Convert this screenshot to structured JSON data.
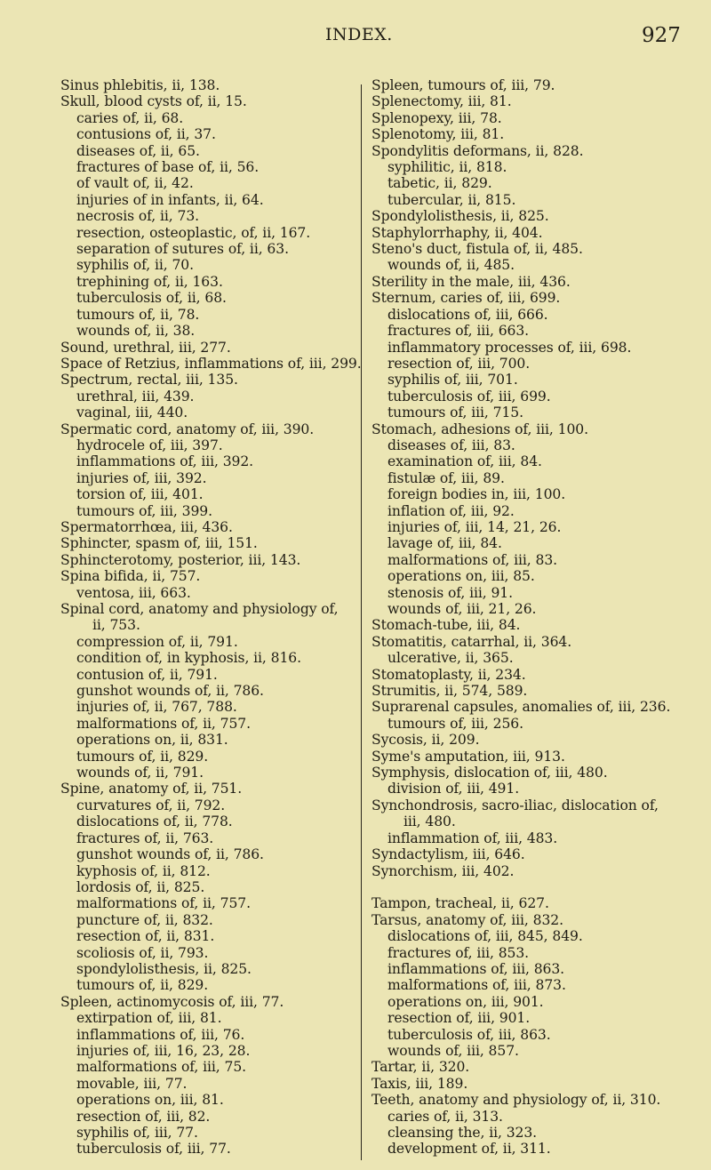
{
  "header": {
    "title": "INDEX.",
    "page_number": "927"
  },
  "left_column": [
    {
      "entries": [
        {
          "t": "Sinus phlebitis, ii, 138.",
          "k": "main"
        },
        {
          "t": "Skull, blood cysts of, ii, 15.",
          "k": "main"
        },
        {
          "t": "caries of, ii, 68.",
          "k": "sub"
        },
        {
          "t": "contusions of, ii, 37.",
          "k": "sub"
        },
        {
          "t": "diseases of, ii, 65.",
          "k": "sub"
        },
        {
          "t": "fractures of base of, ii, 56.",
          "k": "sub"
        },
        {
          "t": "of vault of, ii, 42.",
          "k": "sub"
        },
        {
          "t": "injuries of in infants, ii, 64.",
          "k": "sub"
        },
        {
          "t": "necrosis of, ii, 73.",
          "k": "sub"
        },
        {
          "t": "resection, osteoplastic, of, ii, 167.",
          "k": "sub"
        },
        {
          "t": "separation of sutures of, ii, 63.",
          "k": "sub"
        },
        {
          "t": "syphilis of, ii, 70.",
          "k": "sub"
        },
        {
          "t": "trephining of, ii, 163.",
          "k": "sub"
        },
        {
          "t": "tuberculosis of, ii, 68.",
          "k": "sub"
        },
        {
          "t": "tumours of, ii, 78.",
          "k": "sub"
        },
        {
          "t": "wounds of, ii, 38.",
          "k": "sub"
        },
        {
          "t": "Sound, urethral, iii, 277.",
          "k": "main"
        },
        {
          "t": "Space of Retzius, inflammations of, iii, 299.",
          "k": "main"
        },
        {
          "t": "Spectrum, rectal, iii, 135.",
          "k": "main"
        },
        {
          "t": "urethral, iii, 439.",
          "k": "sub"
        },
        {
          "t": "vaginal, iii, 440.",
          "k": "sub"
        },
        {
          "t": "Spermatic cord, anatomy of, iii, 390.",
          "k": "main"
        },
        {
          "t": "hydrocele of, iii, 397.",
          "k": "sub"
        },
        {
          "t": "inflammations of, iii, 392.",
          "k": "sub"
        },
        {
          "t": "injuries of, iii, 392.",
          "k": "sub"
        },
        {
          "t": "torsion of, iii, 401.",
          "k": "sub"
        },
        {
          "t": "tumours of, iii, 399.",
          "k": "sub"
        },
        {
          "t": "Spermatorrhœa, iii, 436.",
          "k": "main"
        },
        {
          "t": "Sphincter, spasm of, iii, 151.",
          "k": "main"
        },
        {
          "t": "Sphincterotomy, posterior, iii, 143.",
          "k": "main"
        },
        {
          "t": "Spina bifida, ii, 757.",
          "k": "main"
        },
        {
          "t": "ventosa, iii, 663.",
          "k": "sub"
        },
        {
          "t": "Spinal cord, anatomy and physiology of,",
          "k": "main"
        },
        {
          "t": "ii, 753.",
          "k": "cont"
        },
        {
          "t": "compression of, ii, 791.",
          "k": "sub"
        },
        {
          "t": "condition of, in kyphosis, ii, 816.",
          "k": "sub"
        },
        {
          "t": "contusion of, ii, 791.",
          "k": "sub"
        },
        {
          "t": "gunshot wounds of, ii, 786.",
          "k": "sub"
        },
        {
          "t": "injuries of, ii, 767, 788.",
          "k": "sub"
        },
        {
          "t": "malformations of, ii, 757.",
          "k": "sub"
        },
        {
          "t": "operations on, ii, 831.",
          "k": "sub"
        },
        {
          "t": "tumours of, ii, 829.",
          "k": "sub"
        },
        {
          "t": "wounds of, ii, 791.",
          "k": "sub"
        },
        {
          "t": "Spine, anatomy of, ii, 751.",
          "k": "main"
        },
        {
          "t": "curvatures of, ii, 792.",
          "k": "sub"
        },
        {
          "t": "dislocations of, ii, 778.",
          "k": "sub"
        },
        {
          "t": "fractures of, ii, 763.",
          "k": "sub"
        },
        {
          "t": "gunshot wounds of, ii, 786.",
          "k": "sub"
        },
        {
          "t": "kyphosis of, ii, 812.",
          "k": "sub"
        },
        {
          "t": "lordosis of, ii, 825.",
          "k": "sub"
        },
        {
          "t": "malformations of, ii, 757.",
          "k": "sub"
        },
        {
          "t": "puncture of, ii, 832.",
          "k": "sub"
        },
        {
          "t": "resection of, ii, 831.",
          "k": "sub"
        },
        {
          "t": "scoliosis of, ii, 793.",
          "k": "sub"
        },
        {
          "t": "spondylolisthesis, ii, 825.",
          "k": "sub"
        },
        {
          "t": "tumours of, ii, 829.",
          "k": "sub"
        },
        {
          "t": "Spleen, actinomycosis of, iii, 77.",
          "k": "main"
        },
        {
          "t": "extirpation of, iii, 81.",
          "k": "sub"
        },
        {
          "t": "inflammations of, iii, 76.",
          "k": "sub"
        },
        {
          "t": "injuries of, iii, 16, 23, 28.",
          "k": "sub"
        },
        {
          "t": "malformations of, iii, 75.",
          "k": "sub"
        },
        {
          "t": "movable, iii, 77.",
          "k": "sub"
        },
        {
          "t": "operations on, iii, 81.",
          "k": "sub"
        },
        {
          "t": "resection of, iii, 82.",
          "k": "sub"
        },
        {
          "t": "syphilis of, iii, 77.",
          "k": "sub"
        },
        {
          "t": "tuberculosis of, iii, 77.",
          "k": "sub"
        }
      ]
    }
  ],
  "right_column": [
    {
      "entries": [
        {
          "t": "Spleen, tumours of, iii, 79.",
          "k": "main"
        },
        {
          "t": "Splenectomy, iii, 81.",
          "k": "main"
        },
        {
          "t": "Splenopexy, iii, 78.",
          "k": "main"
        },
        {
          "t": "Splenotomy, iii, 81.",
          "k": "main"
        },
        {
          "t": "Spondylitis deformans, ii, 828.",
          "k": "main"
        },
        {
          "t": "syphilitic, ii, 818.",
          "k": "sub"
        },
        {
          "t": "tabetic, ii, 829.",
          "k": "sub"
        },
        {
          "t": "tubercular, ii, 815.",
          "k": "sub"
        },
        {
          "t": "Spondylolisthesis, ii, 825.",
          "k": "main"
        },
        {
          "t": "Staphylorrhaphy, ii, 404.",
          "k": "main"
        },
        {
          "t": "Steno's duct, fistula of, ii, 485.",
          "k": "main"
        },
        {
          "t": "wounds of, ii, 485.",
          "k": "sub"
        },
        {
          "t": "Sterility in the male, iii, 436.",
          "k": "main"
        },
        {
          "t": "Sternum, caries of, iii, 699.",
          "k": "main"
        },
        {
          "t": "dislocations of, iii, 666.",
          "k": "sub"
        },
        {
          "t": "fractures of, iii, 663.",
          "k": "sub"
        },
        {
          "t": "inflammatory processes of, iii, 698.",
          "k": "sub"
        },
        {
          "t": "resection of, iii, 700.",
          "k": "sub"
        },
        {
          "t": "syphilis of, iii, 701.",
          "k": "sub"
        },
        {
          "t": "tuberculosis of, iii, 699.",
          "k": "sub"
        },
        {
          "t": "tumours of, iii, 715.",
          "k": "sub"
        },
        {
          "t": "Stomach, adhesions of, iii, 100.",
          "k": "main"
        },
        {
          "t": "diseases of, iii, 83.",
          "k": "sub"
        },
        {
          "t": "examination of, iii, 84.",
          "k": "sub"
        },
        {
          "t": "fistulæ of, iii, 89.",
          "k": "sub"
        },
        {
          "t": "foreign bodies in, iii, 100.",
          "k": "sub"
        },
        {
          "t": "inflation of, iii, 92.",
          "k": "sub"
        },
        {
          "t": "injuries of, iii, 14, 21, 26.",
          "k": "sub"
        },
        {
          "t": "lavage of, iii, 84.",
          "k": "sub"
        },
        {
          "t": "malformations of, iii, 83.",
          "k": "sub"
        },
        {
          "t": "operations on, iii, 85.",
          "k": "sub"
        },
        {
          "t": "stenosis of, iii, 91.",
          "k": "sub"
        },
        {
          "t": "wounds of, iii, 21, 26.",
          "k": "sub"
        },
        {
          "t": "Stomach-tube, iii, 84.",
          "k": "main"
        },
        {
          "t": "Stomatitis, catarrhal, ii, 364.",
          "k": "main"
        },
        {
          "t": "ulcerative, ii, 365.",
          "k": "sub"
        },
        {
          "t": "Stomatoplasty, ii, 234.",
          "k": "main"
        },
        {
          "t": "Strumitis, ii, 574, 589.",
          "k": "main"
        },
        {
          "t": "Suprarenal capsules, anomalies of, iii, 236.",
          "k": "main"
        },
        {
          "t": "tumours of, iii, 256.",
          "k": "sub"
        },
        {
          "t": "Sycosis, ii, 209.",
          "k": "main"
        },
        {
          "t": "Syme's amputation, iii, 913.",
          "k": "main"
        },
        {
          "t": "Symphysis, dislocation of, iii, 480.",
          "k": "main"
        },
        {
          "t": "division of, iii, 491.",
          "k": "sub"
        },
        {
          "t": "Synchondrosis, sacro-iliac, dislocation of,",
          "k": "main"
        },
        {
          "t": "iii, 480.",
          "k": "cont"
        },
        {
          "t": "inflammation of, iii, 483.",
          "k": "sub"
        },
        {
          "t": "Syndactylism, iii, 646.",
          "k": "main"
        },
        {
          "t": "Synorchism, iii, 402.",
          "k": "main"
        }
      ]
    },
    {
      "entries": [
        {
          "t": "Tampon, tracheal, ii, 627.",
          "k": "main"
        },
        {
          "t": "Tarsus, anatomy of, iii, 832.",
          "k": "main"
        },
        {
          "t": "dislocations of, iii, 845, 849.",
          "k": "sub"
        },
        {
          "t": "fractures of, iii, 853.",
          "k": "sub"
        },
        {
          "t": "inflammations of, iii, 863.",
          "k": "sub"
        },
        {
          "t": "malformations of, iii, 873.",
          "k": "sub"
        },
        {
          "t": "operations on, iii, 901.",
          "k": "sub"
        },
        {
          "t": "resection of, iii, 901.",
          "k": "sub"
        },
        {
          "t": "tuberculosis of, iii, 863.",
          "k": "sub"
        },
        {
          "t": "wounds of, iii, 857.",
          "k": "sub"
        },
        {
          "t": "Tartar, ii, 320.",
          "k": "main"
        },
        {
          "t": "Taxis, iii, 189.",
          "k": "main"
        },
        {
          "t": "Teeth, anatomy and physiology of, ii, 310.",
          "k": "main"
        },
        {
          "t": "caries of, ii, 313.",
          "k": "sub"
        },
        {
          "t": "cleansing the, ii, 323.",
          "k": "sub"
        },
        {
          "t": "development of, ii, 311.",
          "k": "sub"
        }
      ]
    }
  ]
}
